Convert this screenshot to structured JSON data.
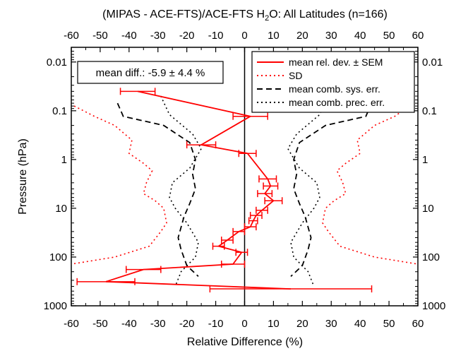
{
  "chart_data": {
    "type": "line",
    "title_prefix": "(MIPAS - ACE-FTS)/ACE-FTS H",
    "title_sub": "2",
    "title_suffix": "O: All Latitudes (n=166)",
    "xlabel": "Relative Difference (%)",
    "ylabel": "Pressure (hPa)",
    "xlim": [
      -60,
      60
    ],
    "ylim": [
      1000,
      0.005
    ],
    "y_scale": "log",
    "x_ticks": [
      -60,
      -50,
      -40,
      -30,
      -20,
      -10,
      0,
      10,
      20,
      30,
      40,
      50,
      60
    ],
    "x_tick_labels": [
      "-60",
      "-50",
      "-40",
      "-30",
      "-20",
      "-10",
      "0",
      "10",
      "20",
      "30",
      "40",
      "50",
      "60"
    ],
    "y_ticks": [
      0.01,
      0.1,
      1,
      10,
      100,
      1000
    ],
    "y_tick_labels": [
      "0.01",
      "0.1",
      "1",
      "10",
      "100",
      "1000"
    ],
    "annotation": "mean diff.: -5.9 ± 4.4 %",
    "legend_position": "top-right",
    "colors": {
      "mean": "#ff0000",
      "sd": "#ff0000",
      "sys": "#000000",
      "prec": "#000000",
      "zero_line": "#000000"
    },
    "series": [
      {
        "name": "mean rel. dev. ± SEM",
        "style": "solid",
        "p": [
          0.04,
          0.13,
          0.5,
          0.75,
          2.5,
          3.5,
          5,
          7,
          11,
          14,
          18,
          24,
          30,
          45,
          60,
          80,
          140,
          180,
          320,
          450
        ],
        "x": [
          -37,
          2,
          -15,
          1,
          8,
          9,
          7,
          10,
          6,
          4,
          3,
          2,
          -2,
          -6,
          -9,
          -1,
          -4,
          -35,
          -48,
          16
        ],
        "sem": [
          6,
          6,
          5,
          3,
          3,
          2.5,
          2.5,
          3,
          2,
          2,
          1.5,
          2,
          2,
          2,
          2,
          2,
          4,
          6,
          10,
          28
        ]
      },
      {
        "name": "SD",
        "style": "dotted",
        "left": {
          "p": [
            0.08,
            0.13,
            0.2,
            0.4,
            0.75,
            1.2,
            1.7,
            3,
            5,
            7,
            10,
            20,
            30,
            60,
            100,
            140
          ],
          "x": [
            -59,
            -52,
            -45,
            -39,
            -40,
            -35,
            -32,
            -34,
            -35,
            -31,
            -28,
            -27,
            -29,
            -33,
            -45,
            -60
          ]
        },
        "right": {
          "p": [
            0.08,
            0.13,
            0.2,
            0.4,
            0.75,
            1.2,
            1.7,
            3,
            5,
            7,
            10,
            20,
            30,
            60,
            100,
            140
          ],
          "x": [
            57,
            52,
            45,
            39,
            40,
            35,
            32,
            34,
            35,
            31,
            28,
            27,
            29,
            33,
            45,
            60
          ]
        }
      },
      {
        "name": "mean comb. sys. err.",
        "style": "dashed",
        "left": {
          "p": [
            0.07,
            0.13,
            0.2,
            0.45,
            1,
            2,
            4,
            8,
            15,
            40,
            70,
            150,
            250
          ],
          "x": [
            -44,
            -42,
            -28,
            -19,
            -17,
            -18,
            -17,
            -19,
            -21,
            -23,
            -22,
            -20,
            -16
          ]
        },
        "right": {
          "p": [
            0.07,
            0.13,
            0.2,
            0.45,
            1,
            2,
            4,
            8,
            15,
            40,
            70,
            150,
            250
          ],
          "x": [
            44,
            42,
            28,
            19,
            17,
            18,
            17,
            19,
            21,
            23,
            22,
            20,
            16
          ]
        }
      },
      {
        "name": "mean comb. prec. err.",
        "style": "dotted",
        "left": {
          "p": [
            0.05,
            0.12,
            0.3,
            0.6,
            1.5,
            3,
            6,
            10,
            20,
            50,
            100,
            200,
            400
          ],
          "x": [
            -29,
            -26,
            -18,
            -15,
            -19,
            -25,
            -26,
            -24,
            -20,
            -16,
            -17,
            -22,
            -24
          ]
        },
        "right": {
          "p": [
            0.05,
            0.12,
            0.3,
            0.6,
            1.5,
            3,
            6,
            10,
            20,
            50,
            100,
            200,
            400
          ],
          "x": [
            29,
            26,
            18,
            15,
            19,
            25,
            26,
            24,
            20,
            16,
            17,
            22,
            24
          ]
        }
      }
    ]
  }
}
